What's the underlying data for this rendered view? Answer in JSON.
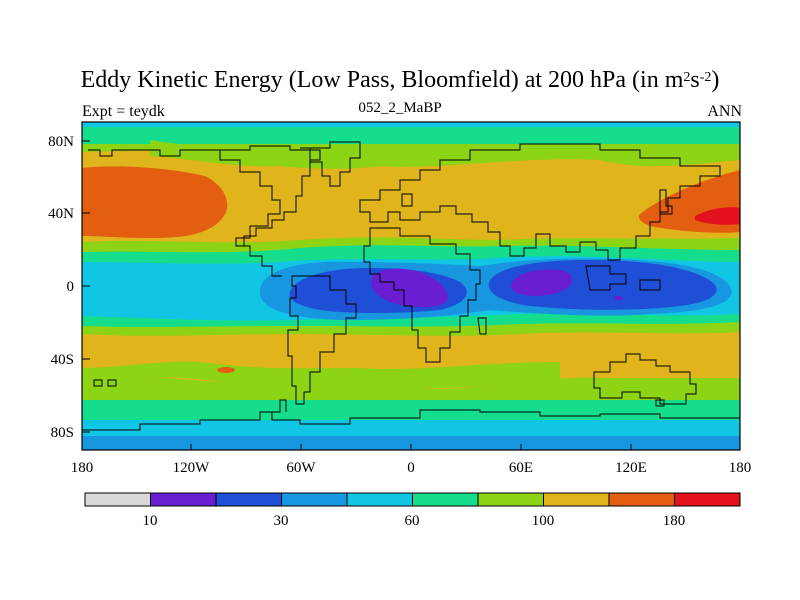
{
  "title": {
    "main": "Eddy Kinetic Energy (Low Pass, Bloomfield) at 200 hPa (in m",
    "sup1": "2",
    "mid": "s",
    "sup2": "-2",
    "close": ")"
  },
  "subtitle": "052_2_MaBP",
  "left_label": "Expt = teydk",
  "right_label": "ANN",
  "map": {
    "lat_ticks": [
      "80N",
      "40N",
      "0",
      "40S",
      "80S"
    ],
    "lon_ticks": [
      "180",
      "120W",
      "60W",
      "0",
      "60E",
      "120E",
      "180"
    ]
  },
  "colorbar": {
    "colors": [
      "#d9d9d9",
      "#6a1ed2",
      "#1f4fd6",
      "#1896e0",
      "#10c6e4",
      "#14dd8c",
      "#8cd414",
      "#e0b41b",
      "#e35e10",
      "#e3101e"
    ],
    "labels": [
      "10",
      "30",
      "60",
      "100",
      "180"
    ]
  },
  "chart_data": {
    "type": "heatmap",
    "title": "Eddy Kinetic Energy (Low Pass, Bloomfield) at 200 hPa (in m2s-2)",
    "subtitle": "052_2_MaBP",
    "xlabel": "",
    "ylabel": "",
    "x_range": [
      -180,
      180
    ],
    "y_range": [
      -90,
      90
    ],
    "colorbar_labels": [
      "10",
      "30",
      "60",
      "100",
      "180"
    ],
    "grid": false
  }
}
